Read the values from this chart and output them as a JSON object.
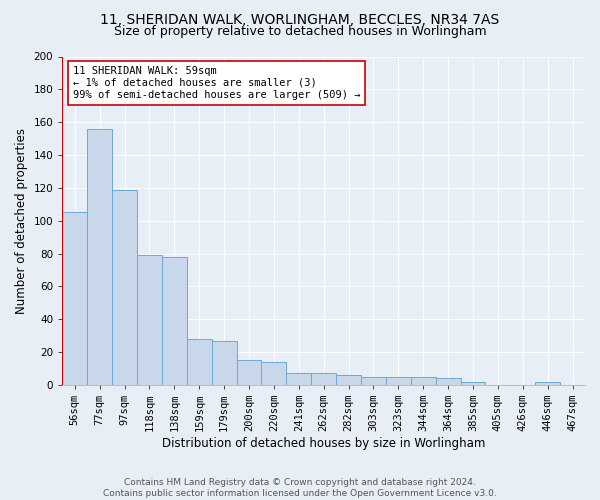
{
  "title1": "11, SHERIDAN WALK, WORLINGHAM, BECCLES, NR34 7AS",
  "title2": "Size of property relative to detached houses in Worlingham",
  "xlabel": "Distribution of detached houses by size in Worlingham",
  "ylabel": "Number of detached properties",
  "categories": [
    "56sqm",
    "77sqm",
    "97sqm",
    "118sqm",
    "138sqm",
    "159sqm",
    "179sqm",
    "200sqm",
    "220sqm",
    "241sqm",
    "262sqm",
    "282sqm",
    "303sqm",
    "323sqm",
    "344sqm",
    "364sqm",
    "385sqm",
    "405sqm",
    "426sqm",
    "446sqm",
    "467sqm"
  ],
  "values": [
    105,
    156,
    119,
    79,
    78,
    28,
    27,
    15,
    14,
    7,
    7,
    6,
    5,
    5,
    5,
    4,
    2,
    0,
    0,
    2,
    0
  ],
  "bar_color": "#c8d8ea",
  "bar_edge_color": "#6aaad4",
  "property_line_color": "#cc0000",
  "annotation_text": "11 SHERIDAN WALK: 59sqm\n← 1% of detached houses are smaller (3)\n99% of semi-detached houses are larger (509) →",
  "annotation_box_color": "#ffffff",
  "annotation_box_edge": "#cc0000",
  "ylim": [
    0,
    200
  ],
  "yticks": [
    0,
    20,
    40,
    60,
    80,
    100,
    120,
    140,
    160,
    180,
    200
  ],
  "background_color": "#e8eef6",
  "plot_bg_color": "#e8eef6",
  "grid_color": "#ffffff",
  "footnote": "Contains HM Land Registry data © Crown copyright and database right 2024.\nContains public sector information licensed under the Open Government Licence v3.0.",
  "title1_fontsize": 10,
  "title2_fontsize": 9,
  "xlabel_fontsize": 8.5,
  "ylabel_fontsize": 8.5,
  "tick_fontsize": 7.5,
  "annot_fontsize": 7.5,
  "footnote_fontsize": 6.5
}
